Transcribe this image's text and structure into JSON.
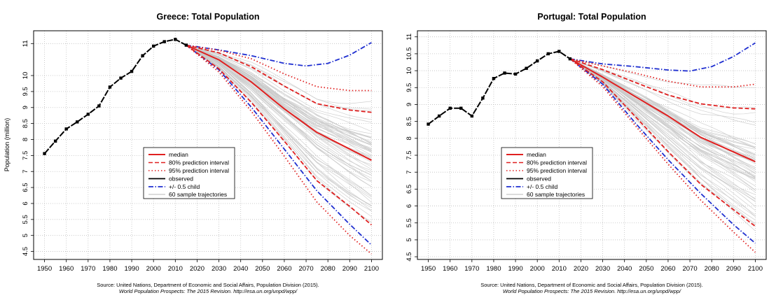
{
  "colors": {
    "median": "#e02020",
    "pi80": "#e02020",
    "pi95": "#e02020",
    "observed": "#000000",
    "half_child": "#1f2fd0",
    "trajectories": "#c8c8c8",
    "grid": "#bfbfbf"
  },
  "chart_data": [
    {
      "type": "line",
      "title": "Greece: Total Population",
      "ylabel": "Population (million)",
      "xlabel": "",
      "xlim": [
        1945,
        2105
      ],
      "ylim": [
        4.25,
        11.4
      ],
      "xticks": [
        1950,
        1960,
        1970,
        1980,
        1990,
        2000,
        2010,
        2020,
        2030,
        2040,
        2050,
        2060,
        2070,
        2080,
        2090,
        2100
      ],
      "yticks": [
        4.5,
        5,
        5.5,
        6,
        6.5,
        7,
        7.5,
        8,
        8.5,
        9,
        9.5,
        10,
        11
      ],
      "ytick_labels": [
        "4.5",
        "5",
        "5.5",
        "6",
        "6.5",
        "7",
        "7.5",
        "8",
        "8.5",
        "9",
        "9.5",
        "10",
        "11"
      ],
      "grid": true,
      "legend": {
        "position": "center",
        "entries": [
          "median",
          "80% prediction interval",
          "95% prediction interval",
          "observed",
          "+/- 0.5 child",
          "60 sample trajectories"
        ]
      },
      "source": "Source: United Nations, Department of Economic and Social Affairs, Population Division (2015).",
      "citation": "World Population Prospects: The 2015 Revision. http://esa.un.org/unpd/wpp/",
      "observed": {
        "x": [
          1950,
          1955,
          1960,
          1965,
          1970,
          1975,
          1980,
          1985,
          1990,
          1995,
          2000,
          2005,
          2010,
          2015
        ],
        "values": [
          7.56,
          7.95,
          8.33,
          8.55,
          8.79,
          9.05,
          9.64,
          9.92,
          10.13,
          10.62,
          10.92,
          11.06,
          11.13,
          10.95
        ]
      },
      "series": [
        {
          "name": "median",
          "style": "solid",
          "x": [
            2015,
            2030,
            2045,
            2060,
            2075,
            2090,
            2100
          ],
          "values": [
            10.95,
            10.49,
            9.79,
            8.96,
            8.22,
            7.7,
            7.35
          ]
        },
        {
          "name": "80% upper",
          "style": "dashed",
          "x": [
            2015,
            2030,
            2045,
            2060,
            2075,
            2090,
            2100
          ],
          "values": [
            10.95,
            10.71,
            10.27,
            9.67,
            9.12,
            8.92,
            8.85
          ]
        },
        {
          "name": "80% lower",
          "style": "dashed",
          "x": [
            2015,
            2030,
            2045,
            2060,
            2075,
            2090,
            2100
          ],
          "values": [
            10.95,
            10.21,
            9.15,
            7.95,
            6.71,
            5.91,
            5.33
          ]
        },
        {
          "name": "95% upper",
          "style": "dotted",
          "x": [
            2015,
            2030,
            2045,
            2060,
            2075,
            2090,
            2100
          ],
          "values": [
            10.95,
            10.79,
            10.52,
            10.05,
            9.65,
            9.53,
            9.53
          ]
        },
        {
          "name": "95% lower",
          "style": "dotted",
          "x": [
            2015,
            2030,
            2045,
            2060,
            2075,
            2090,
            2100
          ],
          "values": [
            10.95,
            10.11,
            8.87,
            7.48,
            6.04,
            5.0,
            4.42
          ]
        },
        {
          "name": "+/- 0.5 child upper",
          "style": "dashdot",
          "x": [
            2015,
            2030,
            2045,
            2060,
            2070,
            2080,
            2090,
            2100
          ],
          "values": [
            10.95,
            10.8,
            10.62,
            10.38,
            10.3,
            10.38,
            10.64,
            11.03
          ]
        },
        {
          "name": "+/- 0.5 child lower",
          "style": "dashdot",
          "x": [
            2015,
            2030,
            2045,
            2060,
            2075,
            2090,
            2100
          ],
          "values": [
            10.95,
            10.18,
            9.0,
            7.7,
            6.39,
            5.35,
            4.7
          ]
        }
      ]
    },
    {
      "type": "line",
      "title": "Portugal: Total Population",
      "ylabel": "",
      "xlabel": "",
      "xlim": [
        1945,
        2105
      ],
      "ylim": [
        4.42,
        11.18
      ],
      "xticks": [
        1950,
        1960,
        1970,
        1980,
        1990,
        2000,
        2010,
        2020,
        2030,
        2040,
        2050,
        2060,
        2070,
        2080,
        2090,
        2100
      ],
      "yticks": [
        4.5,
        5,
        5.5,
        6,
        6.5,
        7,
        7.5,
        8,
        8.5,
        9,
        9.5,
        10,
        10.5,
        11
      ],
      "ytick_labels": [
        "4.5",
        "5",
        "5.5",
        "6",
        "6.5",
        "7",
        "7.5",
        "8",
        "8.5",
        "9",
        "9.5",
        "10",
        "10.5",
        "11"
      ],
      "grid": true,
      "legend": {
        "position": "center",
        "entries": [
          "median",
          "80% prediction interval",
          "95% prediction interval",
          "observed",
          "+/- 0.5 child",
          "60 sample trajectories"
        ]
      },
      "source": "Source: United Nations, Department of Economic and Social Affairs, Population Division (2015).",
      "citation": "World Population Prospects: The 2015 Revision. http://esa.un.org/unpd/wpp/",
      "observed": {
        "x": [
          1950,
          1955,
          1960,
          1965,
          1970,
          1975,
          1980,
          1985,
          1990,
          1995,
          2000,
          2005,
          2010,
          2015
        ],
        "values": [
          8.42,
          8.66,
          8.89,
          8.89,
          8.66,
          9.19,
          9.77,
          9.93,
          9.9,
          10.07,
          10.29,
          10.5,
          10.57,
          10.35
        ]
      },
      "series": [
        {
          "name": "median",
          "style": "solid",
          "x": [
            2015,
            2030,
            2045,
            2060,
            2075,
            2090,
            2100
          ],
          "values": [
            10.35,
            9.81,
            9.23,
            8.66,
            8.03,
            7.6,
            7.31
          ]
        },
        {
          "name": "80% upper",
          "style": "dashed",
          "x": [
            2015,
            2030,
            2045,
            2060,
            2075,
            2090,
            2100
          ],
          "values": [
            10.35,
            10.03,
            9.65,
            9.28,
            9.02,
            8.9,
            8.87
          ]
        },
        {
          "name": "80% lower",
          "style": "dashed",
          "x": [
            2015,
            2030,
            2045,
            2060,
            2075,
            2090,
            2100
          ],
          "values": [
            10.35,
            9.67,
            8.64,
            7.61,
            6.64,
            5.89,
            5.4
          ]
        },
        {
          "name": "95% upper",
          "style": "dotted",
          "x": [
            2015,
            2030,
            2045,
            2060,
            2075,
            2090,
            2100
          ],
          "values": [
            10.35,
            10.14,
            9.93,
            9.69,
            9.52,
            9.52,
            9.6
          ]
        },
        {
          "name": "95% lower",
          "style": "dotted",
          "x": [
            2015,
            2030,
            2045,
            2060,
            2075,
            2090,
            2100
          ],
          "values": [
            10.35,
            9.53,
            8.37,
            7.24,
            6.17,
            5.23,
            4.63
          ]
        },
        {
          "name": "+/- 0.5 child upper",
          "style": "dashdot",
          "x": [
            2015,
            2030,
            2045,
            2060,
            2070,
            2080,
            2090,
            2100
          ],
          "values": [
            10.35,
            10.2,
            10.12,
            10.02,
            9.99,
            10.12,
            10.42,
            10.82
          ]
        },
        {
          "name": "+/- 0.5 child lower",
          "style": "dashdot",
          "x": [
            2015,
            2030,
            2045,
            2060,
            2075,
            2090,
            2100
          ],
          "values": [
            10.35,
            9.6,
            8.45,
            7.37,
            6.37,
            5.45,
            4.9
          ]
        }
      ]
    }
  ]
}
